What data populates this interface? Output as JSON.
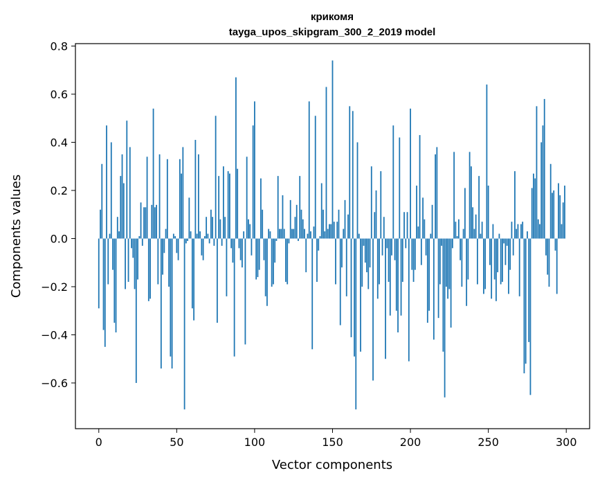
{
  "chart_data": {
    "type": "bar",
    "title_line1": "крикомя",
    "title_line2": "tayga_upos_skipgram_300_2_2019 model",
    "xlabel": "Vector components",
    "ylabel": "Components values",
    "xlim": [
      -15,
      315
    ],
    "ylim": [
      -0.79,
      0.81
    ],
    "xticks": [
      0,
      50,
      100,
      150,
      200,
      250,
      300
    ],
    "xtick_labels": [
      "0",
      "50",
      "100",
      "150",
      "200",
      "250",
      "300"
    ],
    "yticks": [
      -0.6,
      -0.4,
      -0.2,
      0.0,
      0.2,
      0.4,
      0.6,
      0.8
    ],
    "ytick_labels": [
      "−0.6",
      "−0.4",
      "−0.2",
      "0.0",
      "0.2",
      "0.4",
      "0.6",
      "0.8"
    ],
    "bar_color": "#1f77b4",
    "grid": false,
    "values": [
      -0.29,
      0.12,
      0.31,
      -0.38,
      -0.45,
      0.47,
      -0.19,
      0.02,
      0.4,
      -0.13,
      -0.35,
      -0.39,
      0.09,
      0.03,
      0.26,
      0.35,
      0.23,
      -0.21,
      0.49,
      -0.18,
      0.38,
      -0.04,
      -0.08,
      -0.21,
      -0.6,
      -0.17,
      0.01,
      0.15,
      -0.03,
      0.13,
      0.13,
      0.34,
      -0.26,
      -0.25,
      0.14,
      0.54,
      0.13,
      0.14,
      -0.19,
      0.35,
      -0.54,
      -0.15,
      -0.06,
      0.04,
      0.33,
      -0.2,
      -0.49,
      -0.54,
      0.02,
      0.01,
      -0.06,
      -0.09,
      0.33,
      0.27,
      0.38,
      -0.71,
      -0.02,
      -0.01,
      0.17,
      0.03,
      -0.29,
      -0.34,
      0.41,
      0.02,
      0.35,
      0.03,
      -0.07,
      -0.09,
      0.01,
      0.09,
      0.02,
      -0.02,
      0.12,
      0.09,
      -0.03,
      0.51,
      -0.35,
      0.26,
      0.08,
      -0.03,
      0.3,
      0.09,
      -0.24,
      0.28,
      0.27,
      -0.04,
      -0.1,
      -0.49,
      0.67,
      0.29,
      -0.04,
      -0.09,
      -0.12,
      0.03,
      -0.44,
      0.34,
      0.08,
      0.06,
      -0.07,
      0.47,
      0.57,
      -0.17,
      -0.16,
      -0.13,
      0.25,
      0.12,
      -0.09,
      -0.24,
      -0.28,
      0.04,
      0.03,
      -0.2,
      -0.19,
      -0.1,
      -0.01,
      0.26,
      0.04,
      0.04,
      0.18,
      0.04,
      -0.18,
      -0.19,
      -0.02,
      0.16,
      0.04,
      0.04,
      0.09,
      0.14,
      -0.01,
      0.26,
      0.12,
      0.08,
      0.04,
      -0.14,
      0.02,
      0.57,
      0.03,
      -0.46,
      0.05,
      0.51,
      -0.18,
      -0.05,
      0.01,
      0.23,
      0.12,
      0.03,
      0.63,
      0.04,
      0.06,
      0.06,
      0.74,
      0.07,
      -0.19,
      0.07,
      0.12,
      -0.36,
      -0.12,
      0.04,
      0.16,
      -0.24,
      0.1,
      0.55,
      -0.41,
      0.53,
      -0.49,
      -0.71,
      0.4,
      0.02,
      -0.47,
      -0.2,
      -0.03,
      -0.1,
      -0.14,
      -0.21,
      -0.12,
      0.3,
      -0.59,
      0.11,
      0.2,
      -0.25,
      -0.19,
      0.28,
      -0.07,
      0.09,
      -0.5,
      -0.04,
      -0.18,
      -0.32,
      -0.07,
      0.47,
      -0.09,
      -0.3,
      -0.39,
      0.42,
      -0.32,
      -0.18,
      0.11,
      -0.04,
      0.11,
      -0.51,
      0.54,
      -0.13,
      -0.18,
      -0.13,
      0.22,
      0.05,
      0.43,
      -0.11,
      0.17,
      0.08,
      -0.07,
      -0.35,
      -0.3,
      0.02,
      0.14,
      -0.42,
      0.35,
      0.38,
      -0.33,
      -0.19,
      -0.03,
      -0.47,
      -0.66,
      -0.2,
      -0.25,
      -0.21,
      -0.37,
      -0.04,
      0.36,
      0.07,
      0.01,
      0.08,
      -0.09,
      -0.2,
      0.04,
      0.21,
      -0.28,
      -0.17,
      0.36,
      0.3,
      0.13,
      0.04,
      0.1,
      -0.19,
      0.26,
      0.02,
      0.07,
      -0.23,
      -0.21,
      0.64,
      0.22,
      -0.11,
      -0.25,
      0.06,
      -0.17,
      -0.26,
      -0.14,
      0.02,
      -0.19,
      -0.18,
      -0.02,
      -0.11,
      -0.03,
      -0.23,
      -0.13,
      0.07,
      -0.07,
      0.28,
      0.04,
      0.06,
      -0.24,
      0.06,
      0.07,
      -0.56,
      -0.52,
      0.03,
      -0.43,
      -0.65,
      0.21,
      0.27,
      0.25,
      0.55,
      0.08,
      0.06,
      0.4,
      0.47,
      0.58,
      -0.07,
      -0.15,
      -0.2,
      0.31,
      0.19,
      0.2,
      -0.05,
      -0.23,
      0.23,
      0.18,
      0.06,
      0.15,
      0.22
    ]
  }
}
